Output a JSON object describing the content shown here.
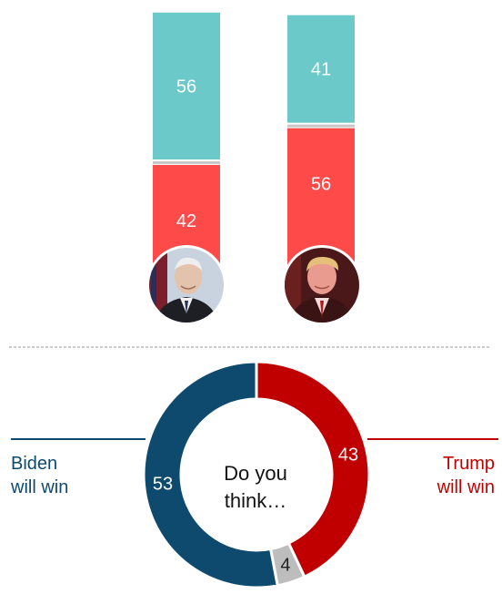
{
  "chart_data": [
    {
      "type": "bar",
      "stacked": true,
      "orientation": "vertical",
      "categories": [
        "Biden",
        "Trump"
      ],
      "series": [
        {
          "values": [
            56,
            41
          ],
          "color": "#6cc9c9"
        },
        {
          "values": [
            42,
            56
          ],
          "color": "#ff4a4a"
        }
      ],
      "icons": [
        "biden-photo-icon",
        "trump-photo-icon"
      ]
    },
    {
      "type": "pie",
      "donut": true,
      "center_text": [
        "Do you",
        "think…"
      ],
      "slices": [
        {
          "label": [
            "Trump",
            "will win"
          ],
          "value": 43,
          "color": "#c00000"
        },
        {
          "label": [],
          "value": 4,
          "color": "#bdbdbd"
        },
        {
          "label": [
            "Biden",
            "will win"
          ],
          "value": 53,
          "color": "#0d4a6e"
        }
      ]
    }
  ],
  "colors": {
    "teal": "#6cc9c9",
    "red_bar": "#ff4a4a",
    "biden_blue": "#0d4a6e",
    "trump_red": "#c00000",
    "other_gray": "#bdbdbd",
    "divider": "#999999"
  }
}
